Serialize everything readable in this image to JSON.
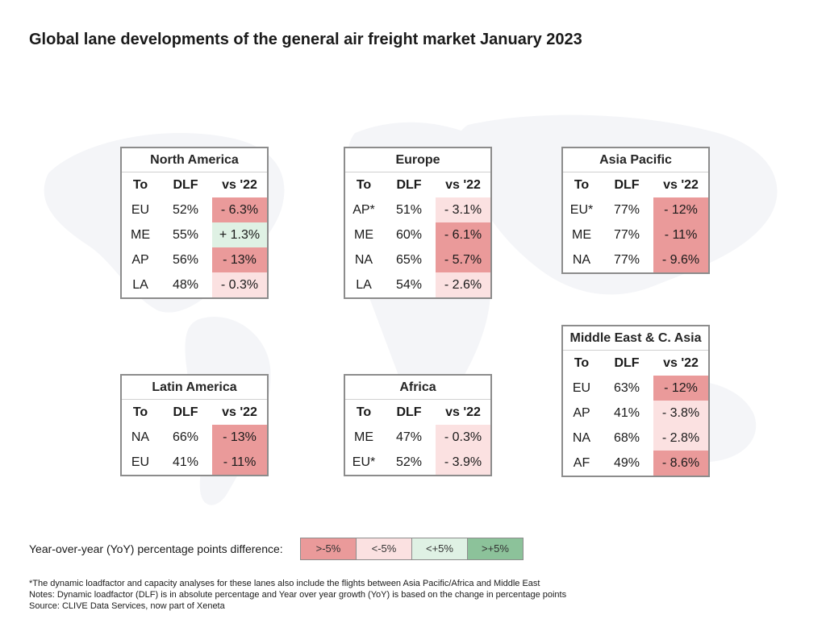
{
  "title": "Global lane developments of the general air freight market January 2023",
  "colors": {
    "strong_negative": "#ea9a9a",
    "mild_negative": "#fbe1e1",
    "mild_positive": "#dff1e4",
    "strong_positive": "#8cc29a"
  },
  "tables": [
    {
      "region": "North America",
      "columns": [
        "To",
        "DLF",
        "vs '22"
      ],
      "rows": [
        {
          "to": "EU",
          "dlf": "52%",
          "vs": "- 6.3%",
          "level": "strong_negative"
        },
        {
          "to": "ME",
          "dlf": "55%",
          "vs": "+ 1.3%",
          "level": "mild_positive"
        },
        {
          "to": "AP",
          "dlf": "56%",
          "vs": "- 13%",
          "level": "strong_negative"
        },
        {
          "to": "LA",
          "dlf": "48%",
          "vs": "- 0.3%",
          "level": "mild_negative"
        }
      ]
    },
    {
      "region": "Europe",
      "columns": [
        "To",
        "DLF",
        "vs '22"
      ],
      "rows": [
        {
          "to": "AP*",
          "dlf": "51%",
          "vs": "- 3.1%",
          "level": "mild_negative"
        },
        {
          "to": "ME",
          "dlf": "60%",
          "vs": "- 6.1%",
          "level": "strong_negative"
        },
        {
          "to": "NA",
          "dlf": "65%",
          "vs": "- 5.7%",
          "level": "strong_negative"
        },
        {
          "to": "LA",
          "dlf": "54%",
          "vs": "- 2.6%",
          "level": "mild_negative"
        }
      ]
    },
    {
      "region": "Asia Pacific",
      "columns": [
        "To",
        "DLF",
        "vs '22"
      ],
      "rows": [
        {
          "to": "EU*",
          "dlf": "77%",
          "vs": "- 12%",
          "level": "strong_negative"
        },
        {
          "to": "ME",
          "dlf": "77%",
          "vs": "- 11%",
          "level": "strong_negative"
        },
        {
          "to": "NA",
          "dlf": "77%",
          "vs": "- 9.6%",
          "level": "strong_negative"
        }
      ]
    },
    {
      "region": "Middle East & C. Asia",
      "columns": [
        "To",
        "DLF",
        "vs '22"
      ],
      "rows": [
        {
          "to": "EU",
          "dlf": "63%",
          "vs": "- 12%",
          "level": "strong_negative"
        },
        {
          "to": "AP",
          "dlf": "41%",
          "vs": "- 3.8%",
          "level": "mild_negative"
        },
        {
          "to": "NA",
          "dlf": "68%",
          "vs": "- 2.8%",
          "level": "mild_negative"
        },
        {
          "to": "AF",
          "dlf": "49%",
          "vs": "- 8.6%",
          "level": "strong_negative"
        }
      ]
    },
    {
      "region": "Latin America",
      "columns": [
        "To",
        "DLF",
        "vs '22"
      ],
      "rows": [
        {
          "to": "NA",
          "dlf": "66%",
          "vs": "- 13%",
          "level": "strong_negative"
        },
        {
          "to": "EU",
          "dlf": "41%",
          "vs": "- 11%",
          "level": "strong_negative"
        }
      ]
    },
    {
      "region": "Africa",
      "columns": [
        "To",
        "DLF",
        "vs '22"
      ],
      "rows": [
        {
          "to": "ME",
          "dlf": "47%",
          "vs": "- 0.3%",
          "level": "mild_negative"
        },
        {
          "to": "EU*",
          "dlf": "52%",
          "vs": "- 3.9%",
          "level": "mild_negative"
        }
      ]
    }
  ],
  "legend": {
    "label": "Year-over-year (YoY) percentage points difference:",
    "items": [
      {
        "text": ">-5%",
        "level": "strong_negative"
      },
      {
        "text": "<-5%",
        "level": "mild_negative"
      },
      {
        "text": "<+5%",
        "level": "mild_positive"
      },
      {
        "text": ">+5%",
        "level": "strong_positive"
      }
    ]
  },
  "notes": [
    "*The dynamic loadfactor and capacity analyses for these lanes also include the flights between Asia Pacific/Africa and Middle East",
    "Notes: Dynamic loadfactor (DLF) is in absolute percentage and Year over year growth (YoY) is based on the change in percentage points",
    "Source: CLIVE Data Services, now part of Xeneta"
  ]
}
